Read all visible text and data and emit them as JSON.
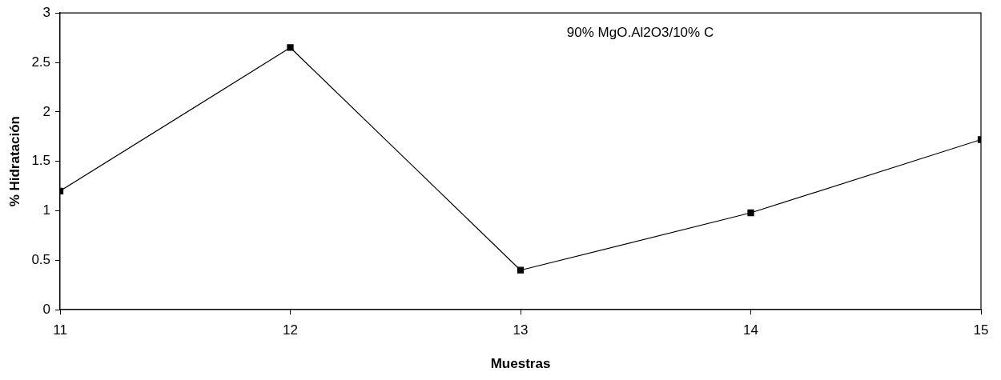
{
  "chart_data": {
    "type": "line",
    "xlabel": "Muestras",
    "ylabel": "% Hidratación",
    "annotations": [
      "90% MgO.Al2O3/10% C"
    ],
    "x": [
      11,
      12,
      13,
      14,
      15
    ],
    "series": [
      {
        "color": "#000000",
        "values": [
          1.2,
          2.65,
          0.4,
          0.98,
          1.72
        ]
      }
    ],
    "xlim": [
      11,
      15
    ],
    "xticks": [
      11,
      12,
      13,
      14,
      15
    ],
    "ylim": [
      0,
      3
    ],
    "yticks": [
      0,
      0.5,
      1,
      1.5,
      2,
      2.5,
      3
    ],
    "grid": false,
    "legend": false,
    "marker": "square",
    "line_style": "solid"
  }
}
